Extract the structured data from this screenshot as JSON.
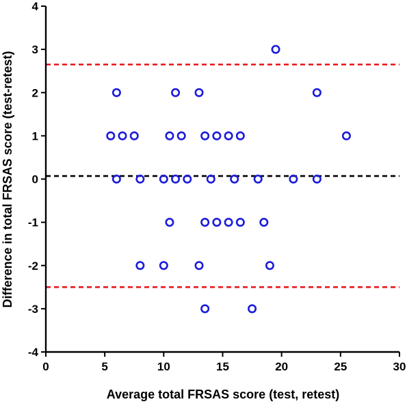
{
  "chart_data": {
    "type": "scatter",
    "title": "",
    "xlabel": "Average total FRSAS score (test, retest)",
    "ylabel": "Difference in total FRSAS score (test-retest)",
    "xlim": [
      0,
      30
    ],
    "ylim": [
      -4,
      4
    ],
    "x_ticks": [
      0,
      5,
      10,
      15,
      20,
      25,
      30
    ],
    "y_ticks": [
      -4,
      -3,
      -2,
      -1,
      0,
      1,
      2,
      3,
      4
    ],
    "x_tick_labels": [
      "0",
      "5",
      "10",
      "15",
      "20",
      "25",
      "30"
    ],
    "y_tick_labels": [
      "-4",
      "-3",
      "-2",
      "-1",
      "0",
      "1",
      "2",
      "3",
      "4"
    ],
    "grid": false,
    "legend": "none",
    "reference_lines": [
      {
        "y": 2.65,
        "color": "#e8191d"
      },
      {
        "y": 0.07,
        "color": "#000000"
      },
      {
        "y": -2.5,
        "color": "#e8191d"
      }
    ],
    "series": [
      {
        "color": "#1a1adb",
        "marker": "open-circle",
        "points": [
          {
            "x": 19.5,
            "y": 3
          },
          {
            "x": 6,
            "y": 2
          },
          {
            "x": 11,
            "y": 2
          },
          {
            "x": 13,
            "y": 2
          },
          {
            "x": 23,
            "y": 2
          },
          {
            "x": 5.5,
            "y": 1
          },
          {
            "x": 6.5,
            "y": 1
          },
          {
            "x": 7.5,
            "y": 1
          },
          {
            "x": 10.5,
            "y": 1
          },
          {
            "x": 11.5,
            "y": 1
          },
          {
            "x": 13.5,
            "y": 1
          },
          {
            "x": 14.5,
            "y": 1
          },
          {
            "x": 15.5,
            "y": 1
          },
          {
            "x": 16.5,
            "y": 1
          },
          {
            "x": 25.5,
            "y": 1
          },
          {
            "x": 6,
            "y": 0
          },
          {
            "x": 8,
            "y": 0
          },
          {
            "x": 10,
            "y": 0
          },
          {
            "x": 11,
            "y": 0
          },
          {
            "x": 12,
            "y": 0
          },
          {
            "x": 14,
            "y": 0
          },
          {
            "x": 16,
            "y": 0
          },
          {
            "x": 18,
            "y": 0
          },
          {
            "x": 21,
            "y": 0
          },
          {
            "x": 23,
            "y": 0
          },
          {
            "x": 10.5,
            "y": -1
          },
          {
            "x": 13.5,
            "y": -1
          },
          {
            "x": 14.5,
            "y": -1
          },
          {
            "x": 15.5,
            "y": -1
          },
          {
            "x": 16.5,
            "y": -1
          },
          {
            "x": 18.5,
            "y": -1
          },
          {
            "x": 8,
            "y": -2
          },
          {
            "x": 10,
            "y": -2
          },
          {
            "x": 13,
            "y": -2
          },
          {
            "x": 19,
            "y": -2
          },
          {
            "x": 13.5,
            "y": -3
          },
          {
            "x": 17.5,
            "y": -3
          }
        ]
      }
    ]
  }
}
